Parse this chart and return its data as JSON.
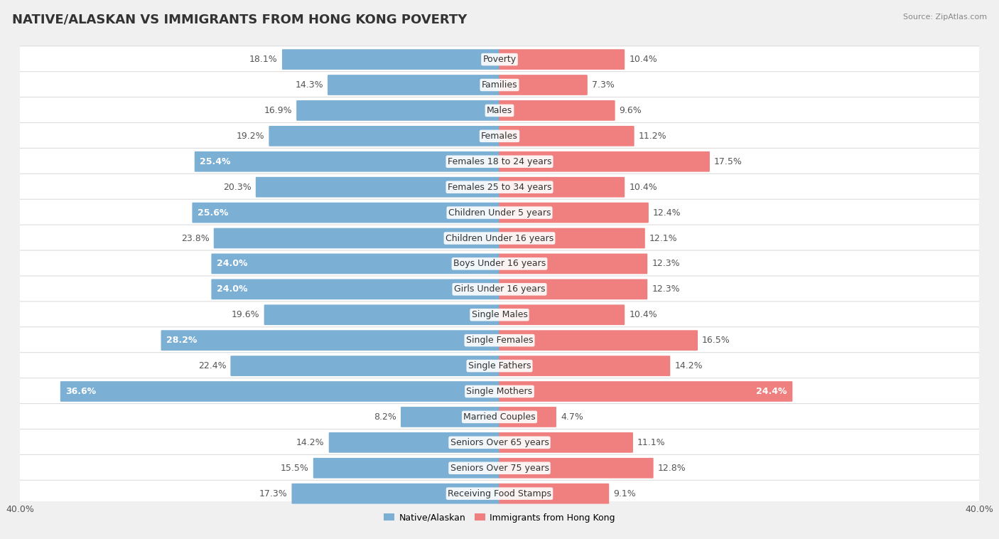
{
  "title": "NATIVE/ALASKAN VS IMMIGRANTS FROM HONG KONG POVERTY",
  "source": "Source: ZipAtlas.com",
  "categories": [
    "Poverty",
    "Families",
    "Males",
    "Females",
    "Females 18 to 24 years",
    "Females 25 to 34 years",
    "Children Under 5 years",
    "Children Under 16 years",
    "Boys Under 16 years",
    "Girls Under 16 years",
    "Single Males",
    "Single Females",
    "Single Fathers",
    "Single Mothers",
    "Married Couples",
    "Seniors Over 65 years",
    "Seniors Over 75 years",
    "Receiving Food Stamps"
  ],
  "native_values": [
    18.1,
    14.3,
    16.9,
    19.2,
    25.4,
    20.3,
    25.6,
    23.8,
    24.0,
    24.0,
    19.6,
    28.2,
    22.4,
    36.6,
    8.2,
    14.2,
    15.5,
    17.3
  ],
  "immigrant_values": [
    10.4,
    7.3,
    9.6,
    11.2,
    17.5,
    10.4,
    12.4,
    12.1,
    12.3,
    12.3,
    10.4,
    16.5,
    14.2,
    24.4,
    4.7,
    11.1,
    12.8,
    9.1
  ],
  "native_color": "#7bafd4",
  "immigrant_color": "#f08080",
  "native_label": "Native/Alaskan",
  "immigrant_label": "Immigrants from Hong Kong",
  "x_max": 40.0,
  "background_color": "#f0f0f0",
  "row_bg_color": "#ffffff",
  "title_fontsize": 13,
  "label_fontsize": 9,
  "value_fontsize": 9,
  "axis_label_fontsize": 9,
  "inside_label_threshold_native": 24.0,
  "inside_label_threshold_immigrant": 20.0
}
